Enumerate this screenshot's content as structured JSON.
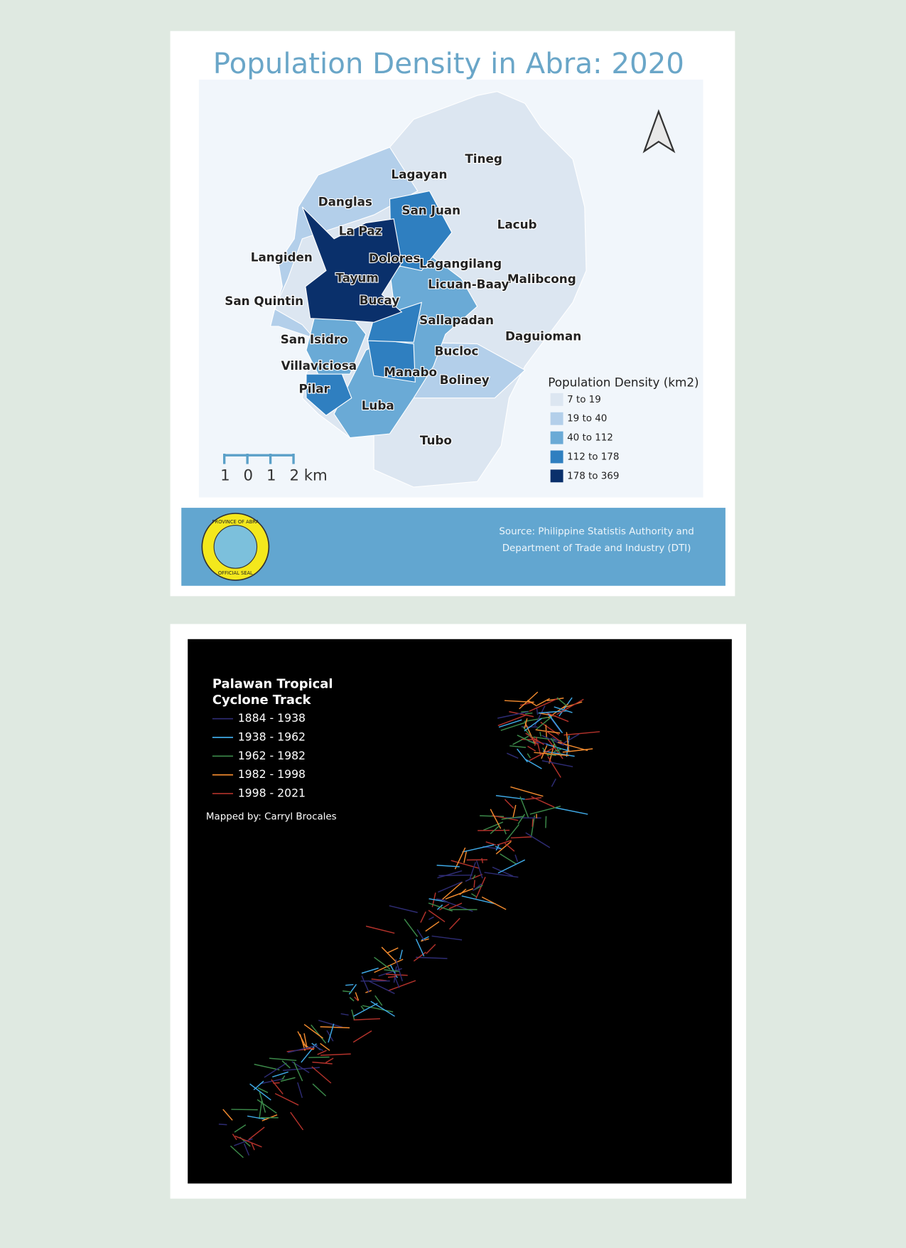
{
  "abra_map": {
    "title": "Population Density in Abra: 2020",
    "municipalities": [
      "Tineg",
      "Lagayan",
      "Danglas",
      "San Juan",
      "Lacub",
      "La Paz",
      "Langiden",
      "Dolores",
      "Lagangilang",
      "Malibcong",
      "Tayum",
      "Licuan-Baay",
      "San Quintin",
      "Bucay",
      "Sallapadan",
      "Daguioman",
      "San Isidro",
      "Bucloc",
      "Villaviciosa",
      "Manabo",
      "Boliney",
      "Pilar",
      "Luba",
      "Tubo"
    ],
    "legend": {
      "title": "Population Density (km2)",
      "items": [
        {
          "label": "7 to 19",
          "color": "#dce6f1"
        },
        {
          "label": "19 to 40",
          "color": "#b3cfea"
        },
        {
          "label": "40 to 112",
          "color": "#6aaad6"
        },
        {
          "label": "112 to 178",
          "color": "#2f7fc0"
        },
        {
          "label": "178 to 369",
          "color": "#0a306b"
        }
      ]
    },
    "scale_bar": [
      "1",
      "0",
      "1",
      "2 km"
    ],
    "seal": [
      "PROVINCE OF ABRA",
      "OFFICIAL SEAL"
    ],
    "source": [
      "Source: Philippine Statistis Authority and",
      "Department of Trade and Industry (DTI)"
    ]
  },
  "cyclone_map": {
    "legend": {
      "title": [
        "Palawan Tropical",
        "Cyclone Track"
      ],
      "items": [
        {
          "label": "1884 - 1938",
          "color": "#2e2c74"
        },
        {
          "label": "1938 - 1962",
          "color": "#3fa9e6"
        },
        {
          "label": "1962 - 1982",
          "color": "#3c8a4a"
        },
        {
          "label": "1982 - 1998",
          "color": "#f28a2e"
        },
        {
          "label": "1998 - 2021",
          "color": "#b3322b"
        }
      ]
    },
    "credit": "Mapped by: Carryl Brocales"
  }
}
